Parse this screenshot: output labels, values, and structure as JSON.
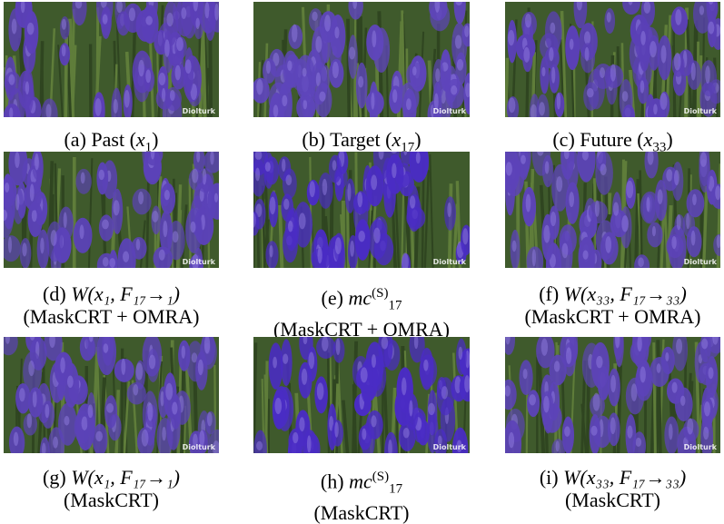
{
  "panels": [
    {
      "id": "a",
      "caption_prefix": "(a) Past ",
      "math": "x",
      "sub": "1",
      "sup": "",
      "tail": "",
      "line2": "",
      "watermark": "Diolturk",
      "tint": "#5b3fb8"
    },
    {
      "id": "b",
      "caption_prefix": "(b) Target ",
      "math": "x",
      "sub": "17",
      "sup": "",
      "tail": "",
      "line2": "",
      "watermark": "Diolturk",
      "tint": "#5e45bb"
    },
    {
      "id": "c",
      "caption_prefix": "(c) Future ",
      "math": "x",
      "sub": "33",
      "sup": "",
      "tail": "",
      "line2": "",
      "watermark": "Diolturk",
      "tint": "#5a40b6"
    },
    {
      "id": "d",
      "caption_prefix": "(d) ",
      "math": "W",
      "sub": "",
      "sup": "",
      "tail": "(x₁, F₁₇→₁)",
      "line2": "(MaskCRT + OMRA)",
      "watermark": "Diolturk",
      "tint": "#5b42b8"
    },
    {
      "id": "e",
      "caption_prefix": "(e) ",
      "math": "mc",
      "sub": "17",
      "sup": "(S)",
      "tail": "",
      "line2": "(MaskCRT + OMRA)",
      "watermark": "Diolturk",
      "tint": "#4a2cc4"
    },
    {
      "id": "f",
      "caption_prefix": "(f) ",
      "math": "W",
      "sub": "",
      "sup": "",
      "tail": "(x₃₃, F₁₇→₃₃)",
      "line2": "(MaskCRT + OMRA)",
      "watermark": "Diolturk",
      "tint": "#5c43b8"
    },
    {
      "id": "g",
      "caption_prefix": "(g) ",
      "math": "W",
      "sub": "",
      "sup": "",
      "tail": "(x₁, F₁₇→₁)",
      "line2": "(MaskCRT)",
      "watermark": "Diolturk",
      "tint": "#5b42b8"
    },
    {
      "id": "h",
      "caption_prefix": "(h) ",
      "math": "mc",
      "sub": "17",
      "sup": "(S)",
      "tail": "",
      "line2": "(MaskCRT)",
      "watermark": "Diolturk",
      "tint": "#4a2cc4"
    },
    {
      "id": "i",
      "caption_prefix": "(i) ",
      "math": "W",
      "sub": "",
      "sup": "",
      "tail": "(x₃₃, F₁₇→₃₃)",
      "line2": "(MaskCRT)",
      "watermark": "Diolturk",
      "tint": "#5c43b8"
    }
  ]
}
